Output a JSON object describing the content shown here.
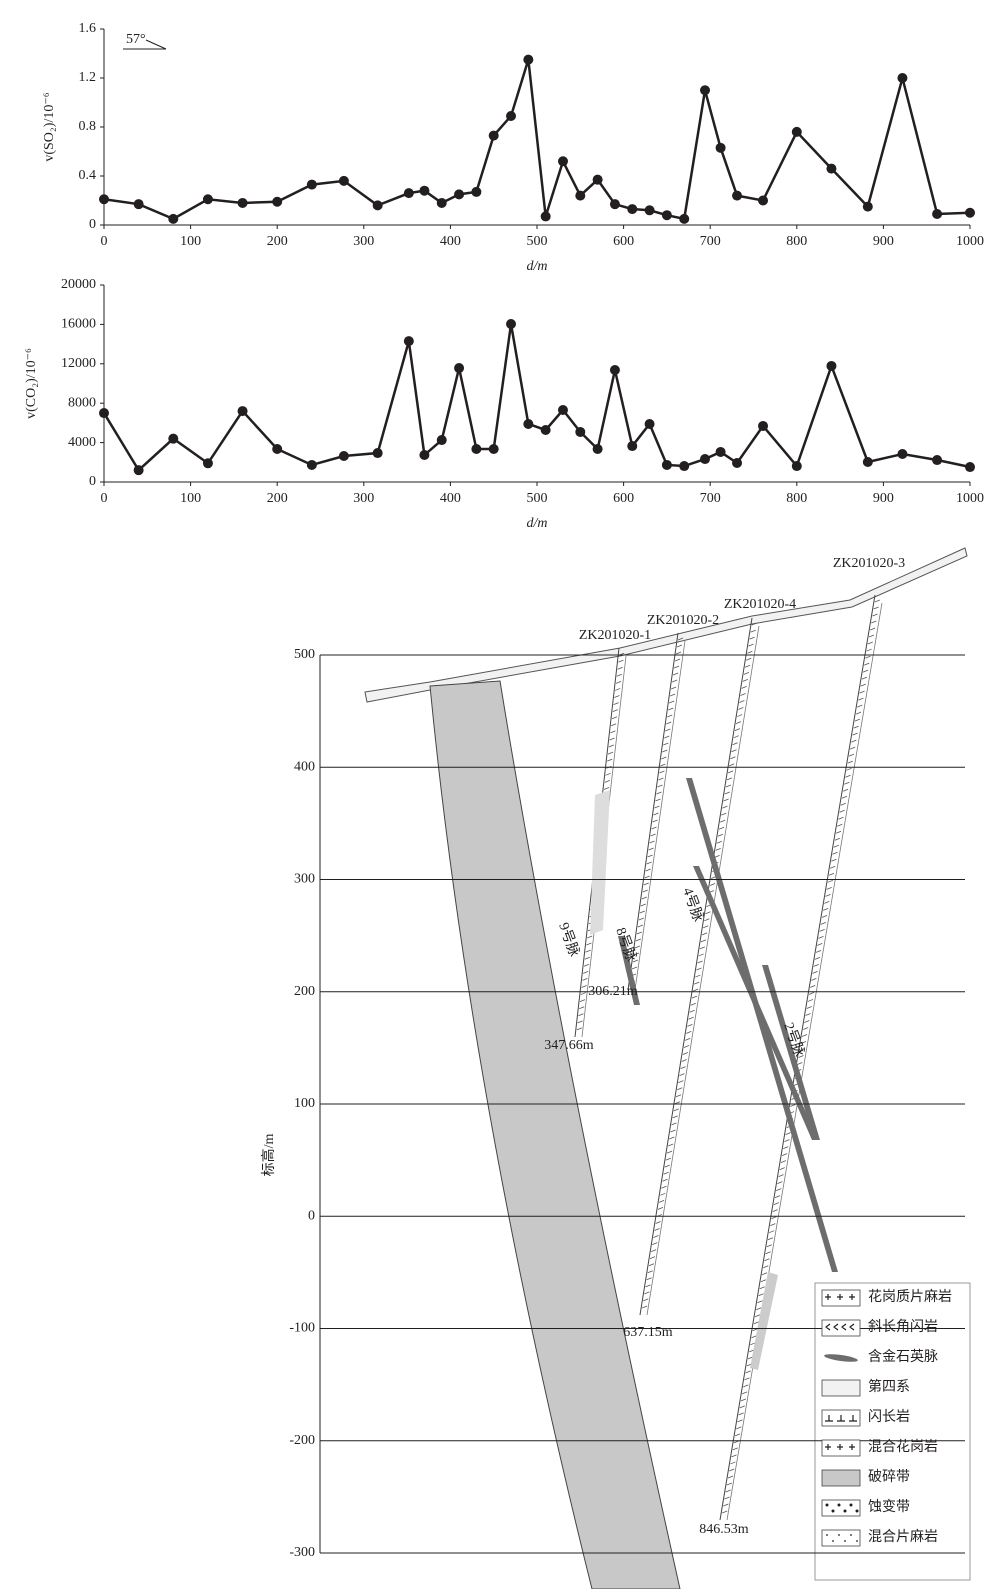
{
  "chart_data": [
    {
      "type": "line",
      "ylabel": "v(SO₂)/10⁻⁶",
      "xlabel": "d/m",
      "annotation": "57°",
      "x": [
        0,
        40,
        80,
        120,
        160,
        200,
        240,
        277,
        316,
        352,
        370,
        390,
        410,
        430,
        450,
        470,
        490,
        510,
        530,
        550,
        570,
        590,
        610,
        630,
        650,
        670,
        694,
        712,
        731,
        761,
        800,
        840,
        882,
        922,
        962,
        1000
      ],
      "series": [
        {
          "color": "#231f20",
          "values": [
            0.21,
            0.17,
            0.05,
            0.21,
            0.18,
            0.19,
            0.33,
            0.36,
            0.16,
            0.26,
            0.28,
            0.18,
            0.25,
            0.27,
            0.73,
            0.89,
            1.35,
            0.07,
            0.52,
            0.24,
            0.37,
            0.17,
            0.13,
            0.12,
            0.08,
            0.05,
            1.1,
            0.63,
            0.24,
            0.2,
            0.76,
            0.46,
            0.15,
            1.2,
            0.09,
            0.1
          ]
        }
      ],
      "xlim": [
        0,
        1000
      ],
      "xticks": [
        0,
        100,
        200,
        300,
        400,
        500,
        600,
        700,
        800,
        900,
        1000
      ],
      "ylim": [
        0,
        1.6
      ],
      "yticks": [
        0,
        0.4,
        0.8,
        1.2,
        1.6
      ]
    },
    {
      "type": "line",
      "ylabel": "v(CO₂)/10⁻⁶",
      "xlabel": "d/m",
      "x": [
        0,
        40,
        80,
        120,
        160,
        200,
        240,
        277,
        316,
        352,
        370,
        390,
        410,
        430,
        450,
        470,
        490,
        510,
        530,
        550,
        570,
        590,
        610,
        630,
        650,
        670,
        694,
        712,
        731,
        761,
        800,
        840,
        882,
        922,
        962,
        1000
      ],
      "series": [
        {
          "color": "#231f20",
          "values": [
            7000,
            1200,
            4400,
            1900,
            7200,
            3350,
            1730,
            2640,
            2940,
            14300,
            2740,
            4260,
            11570,
            3350,
            3350,
            16040,
            5890,
            5280,
            7310,
            5080,
            3350,
            11370,
            3650,
            5890,
            1730,
            1620,
            2330,
            3050,
            1930,
            5690,
            1620,
            11780,
            2030,
            2840,
            2230,
            1520
          ]
        }
      ],
      "xlim": [
        0,
        1000
      ],
      "xticks": [
        0,
        100,
        200,
        300,
        400,
        500,
        600,
        700,
        800,
        900,
        1000
      ],
      "ylim": [
        0,
        20000
      ],
      "yticks": [
        0,
        4000,
        8000,
        12000,
        16000,
        20000
      ]
    }
  ],
  "section": {
    "ylabel": "标高/m",
    "ylim": [
      -300,
      500
    ],
    "yticks": [
      500,
      400,
      300,
      200,
      100,
      0,
      -100,
      -200,
      -300
    ],
    "drills": [
      {
        "name": "ZK201020-1",
        "depth": "347.66m"
      },
      {
        "name": "ZK201020-2",
        "depth": "306.21m"
      },
      {
        "name": "ZK201020-4",
        "depth": "637.15m"
      },
      {
        "name": "ZK201020-3",
        "depth": "846.53m"
      }
    ],
    "veins": [
      "9号脉",
      "8号脉",
      "4号脉",
      "2号脉"
    ],
    "legend": [
      "花岗质片麻岩",
      "斜长角闪岩",
      "含金石英脉",
      "第四系",
      "闪长岩",
      "混合花岗岩",
      "破碎带",
      "蚀变带",
      "混合片麻岩"
    ]
  }
}
